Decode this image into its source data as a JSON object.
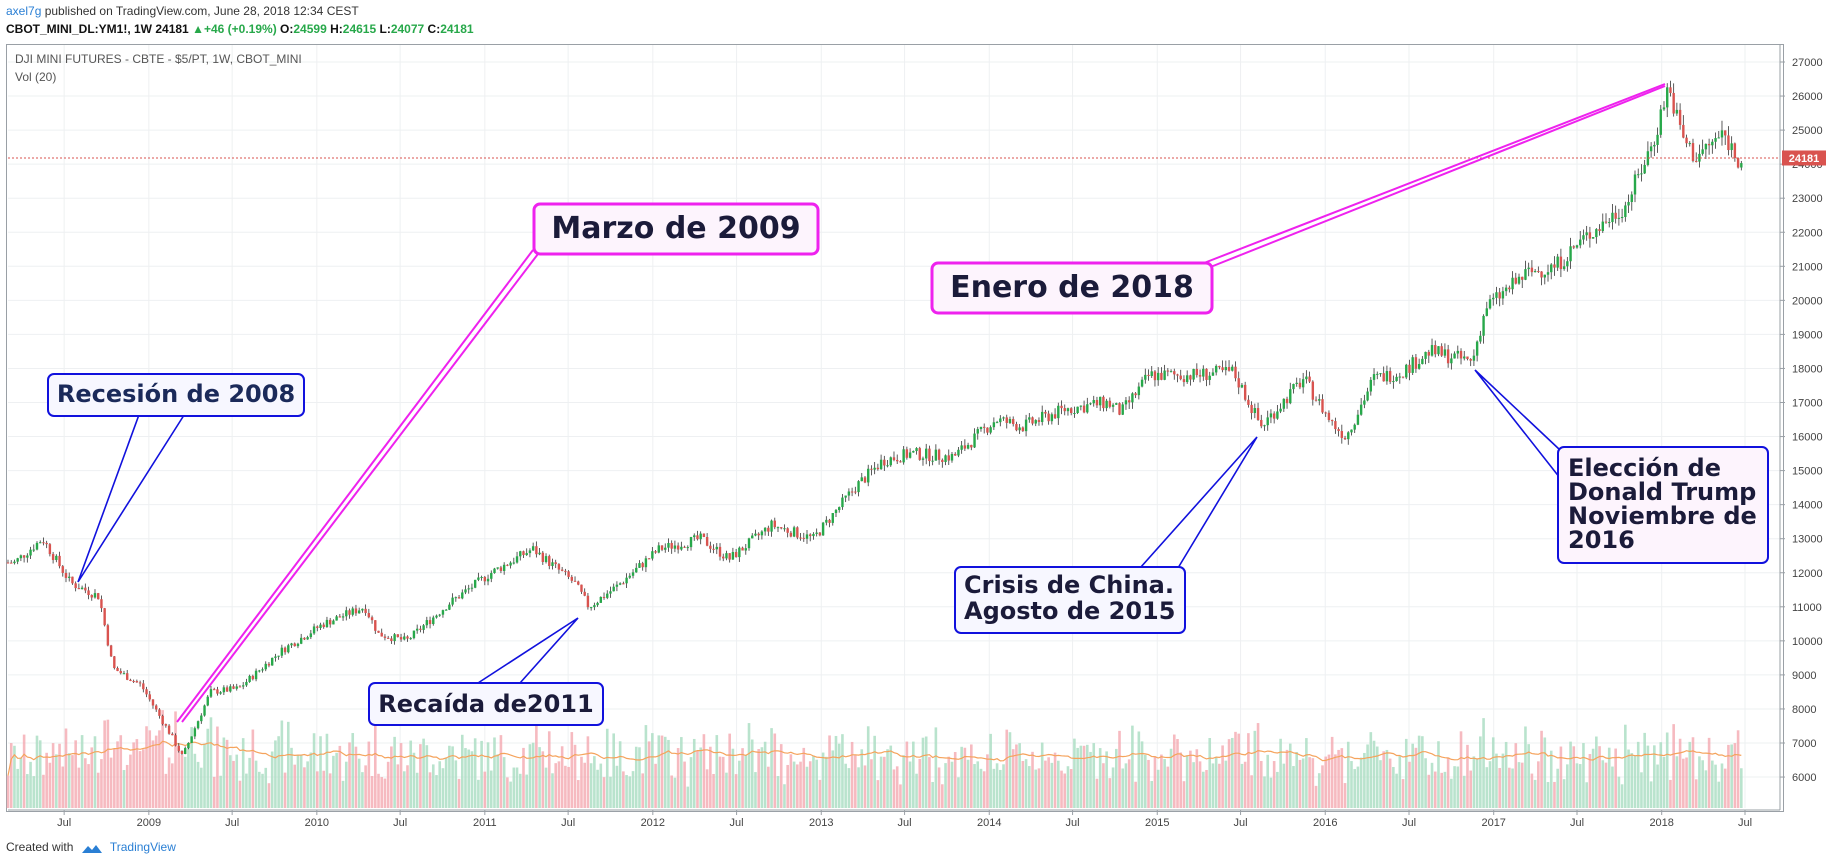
{
  "header": {
    "author": "axel7g",
    "published_text": " published on TradingView.com, June 28, 2018 12:34 CEST",
    "symbol_line": "CBOT_MINI_DL:YM1!, 1W",
    "last_price": "24181",
    "change_arrow": "▲",
    "change": "+46 (+0.19%)",
    "open_label": "O:",
    "open": "24599",
    "high_label": "H:",
    "high": "24615",
    "low_label": "L:",
    "low": "24077",
    "close_label": "C:",
    "close": "24181"
  },
  "chart_title": "DJI MINI FUTURES - CBTE - $5/PT, 1W, CBOT_MINI",
  "volume_label": "Vol (20)",
  "price_badge": "24181",
  "footer": {
    "created_with": "Created with",
    "brand": "TradingView"
  },
  "colors": {
    "up": "#27a84a",
    "down": "#d9534f",
    "vol_up": "#a8dcc0",
    "vol_down": "#f4a9b0",
    "vol_ma": "#f5a35c",
    "magenta": "#ee22ee",
    "blue": "#1111dd",
    "price_line": "#d9534f"
  },
  "chart_data": {
    "type": "candlestick",
    "x": [
      "2008-03",
      "2008-05",
      "2008-07",
      "2008-09",
      "2008-10",
      "2008-12",
      "2009-02",
      "2009-03",
      "2009-05",
      "2009-07",
      "2009-10",
      "2010-01",
      "2010-04",
      "2010-05",
      "2010-07",
      "2010-10",
      "2011-01",
      "2011-04",
      "2011-07",
      "2011-08",
      "2011-10",
      "2012-01",
      "2012-04",
      "2012-06",
      "2012-09",
      "2012-12",
      "2013-03",
      "2013-05",
      "2013-07",
      "2013-10",
      "2014-01",
      "2014-03",
      "2014-06",
      "2014-09",
      "2014-10",
      "2014-12",
      "2015-03",
      "2015-06",
      "2015-08",
      "2015-11",
      "2016-01",
      "2016-02",
      "2016-04",
      "2016-06",
      "2016-08",
      "2016-11",
      "2016-12",
      "2017-03",
      "2017-05",
      "2017-07",
      "2017-10",
      "2017-12",
      "2018-01",
      "2018-02",
      "2018-03",
      "2018-05",
      "2018-06"
    ],
    "close": [
      12300,
      13000,
      11700,
      11300,
      9200,
      8700,
      7300,
      6600,
      8500,
      8600,
      9700,
      10500,
      11000,
      10200,
      10000,
      11100,
      12000,
      12700,
      11700,
      11000,
      11600,
      12700,
      13000,
      12400,
      13400,
      13000,
      14500,
      15300,
      15500,
      15400,
      16500,
      16300,
      16800,
      17000,
      16700,
      17800,
      17800,
      17900,
      16300,
      17700,
      16400,
      16000,
      17700,
      17900,
      18500,
      18200,
      19800,
      20800,
      21000,
      21800,
      22800,
      24700,
      26300,
      24800,
      24200,
      24900,
      24181
    ],
    "y_ticks": [
      "27000",
      "26000",
      "25000",
      "24000",
      "23000",
      "22000",
      "21000",
      "20000",
      "19000",
      "18000",
      "17000",
      "16000",
      "15000",
      "14000",
      "13000",
      "12000",
      "11000",
      "10000",
      "9000",
      "8000",
      "7000",
      "6000"
    ],
    "x_ticks": [
      "Jul",
      "2009",
      "Jul",
      "2010",
      "Jul",
      "2011",
      "Jul",
      "2012",
      "Jul",
      "2013",
      "Jul",
      "2014",
      "Jul",
      "2015",
      "Jul",
      "2016",
      "Jul",
      "2017",
      "Jul",
      "2018",
      "Jul"
    ],
    "ylim": [
      5400,
      27400
    ],
    "last_price": 24181,
    "volume_ma_series": "Vol (20)"
  },
  "annotations": {
    "recesion": "Recesión de 2008",
    "marzo": "Marzo de 2009",
    "recaida": "Recaída de2011",
    "enero": "Enero de 2018",
    "china_1": "Crisis de China.",
    "china_2": "Agosto de 2015",
    "trump_1": "Elección de",
    "trump_2": "Donald Trump",
    "trump_3": "Noviembre de",
    "trump_4": "2016"
  }
}
